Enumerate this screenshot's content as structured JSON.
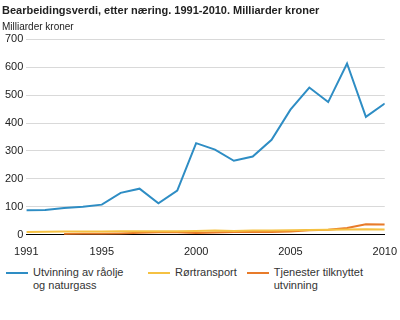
{
  "chart_data": {
    "type": "line",
    "title": "Bearbeidingsverdi, etter næring. 1991-2010. Milliarder kroner",
    "ylabel": "Milliarder kroner",
    "x": [
      1991,
      1992,
      1993,
      1994,
      1995,
      1996,
      1997,
      1998,
      1999,
      2000,
      2001,
      2002,
      2003,
      2004,
      2005,
      2006,
      2007,
      2008,
      2009,
      2010
    ],
    "series": [
      {
        "name": "Utvinning av råolje og naturgass",
        "color": "#2e8dc4",
        "values": [
          88,
          89,
          96,
          100,
          108,
          150,
          165,
          113,
          158,
          328,
          305,
          265,
          280,
          340,
          448,
          527,
          475,
          613,
          422,
          470
        ]
      },
      {
        "name": "Rørtransport",
        "color": "#f5c142",
        "values": [
          10,
          11,
          12,
          12,
          12,
          13,
          13,
          13,
          13,
          14,
          15,
          14,
          15,
          15,
          16,
          17,
          18,
          19,
          20,
          19
        ]
      },
      {
        "name": "Tjenester tilknyttet utvinning",
        "color": "#e87b2a",
        "values": [
          null,
          null,
          3,
          4,
          4,
          5,
          7,
          9,
          9,
          6,
          8,
          10,
          10,
          10,
          12,
          16,
          18,
          24,
          38,
          37
        ]
      }
    ],
    "xlim": [
      1991,
      2010
    ],
    "xticks": [
      1991,
      1995,
      2000,
      2005,
      2010
    ],
    "ylim": [
      0,
      700
    ],
    "yticks": [
      0,
      100,
      200,
      300,
      400,
      500,
      600,
      700
    ],
    "grid": true,
    "legend": "bottom"
  }
}
